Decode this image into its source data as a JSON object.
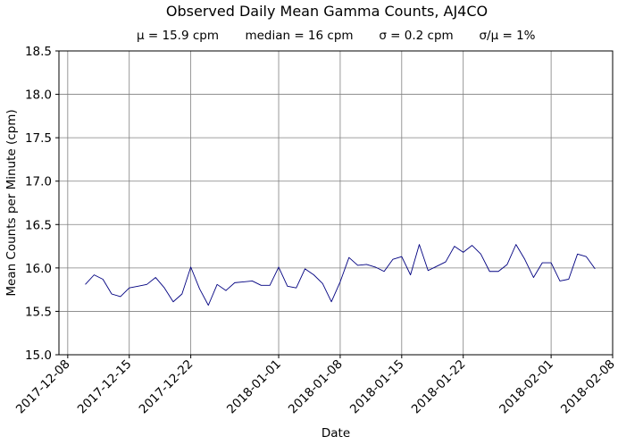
{
  "chart_data": {
    "type": "line",
    "title": "Observed Daily Mean Gamma Counts, AJ4CO",
    "subtitle_stats": [
      "μ = 15.9 cpm",
      "median = 16 cpm",
      "σ = 0.2 cpm",
      "σ/μ = 1%"
    ],
    "xlabel": "Date",
    "ylabel": "Mean Counts per Minute (cpm)",
    "ylim": [
      15.0,
      18.5
    ],
    "xlim": [
      "2017-12-07",
      "2018-02-08"
    ],
    "grid": true,
    "line_color": "#000080",
    "yticks": [
      "15.0",
      "15.5",
      "16.0",
      "16.5",
      "17.0",
      "17.5",
      "18.0",
      "18.5"
    ],
    "xticks": [
      "2017-12-08",
      "2017-12-15",
      "2017-12-22",
      "2018-01-01",
      "2018-01-08",
      "2018-01-15",
      "2018-01-22",
      "2018-02-01",
      "2018-02-08"
    ],
    "x": [
      "2017-12-10",
      "2017-12-11",
      "2017-12-12",
      "2017-12-13",
      "2017-12-14",
      "2017-12-15",
      "2017-12-16",
      "2017-12-17",
      "2017-12-18",
      "2017-12-19",
      "2017-12-20",
      "2017-12-21",
      "2017-12-22",
      "2017-12-23",
      "2017-12-24",
      "2017-12-25",
      "2017-12-26",
      "2017-12-27",
      "2017-12-28",
      "2017-12-29",
      "2017-12-30",
      "2017-12-31",
      "2018-01-01",
      "2018-01-02",
      "2018-01-03",
      "2018-01-04",
      "2018-01-05",
      "2018-01-06",
      "2018-01-07",
      "2018-01-08",
      "2018-01-09",
      "2018-01-10",
      "2018-01-11",
      "2018-01-12",
      "2018-01-13",
      "2018-01-14",
      "2018-01-15",
      "2018-01-16",
      "2018-01-17",
      "2018-01-18",
      "2018-01-19",
      "2018-01-20",
      "2018-01-21",
      "2018-01-22",
      "2018-01-23",
      "2018-01-24",
      "2018-01-25",
      "2018-01-26",
      "2018-01-27",
      "2018-01-28",
      "2018-01-29",
      "2018-01-30",
      "2018-01-31",
      "2018-02-01",
      "2018-02-02",
      "2018-02-03",
      "2018-02-04",
      "2018-02-05",
      "2018-02-06"
    ],
    "y": [
      15.81,
      15.92,
      15.87,
      15.7,
      15.67,
      15.77,
      15.79,
      15.81,
      15.89,
      15.77,
      15.61,
      15.7,
      16.01,
      15.76,
      15.57,
      15.81,
      15.74,
      15.83,
      15.84,
      15.85,
      15.8,
      15.8,
      16.01,
      15.79,
      15.77,
      15.99,
      15.92,
      15.82,
      15.61,
      15.84,
      16.12,
      16.03,
      16.04,
      16.01,
      15.96,
      16.1,
      16.13,
      15.92,
      16.27,
      15.97,
      16.02,
      16.07,
      16.25,
      16.18,
      16.26,
      16.16,
      15.96,
      15.96,
      16.04,
      16.27,
      16.1,
      15.89,
      16.06,
      16.06,
      15.85,
      15.87,
      16.16,
      16.13,
      15.99
    ]
  }
}
